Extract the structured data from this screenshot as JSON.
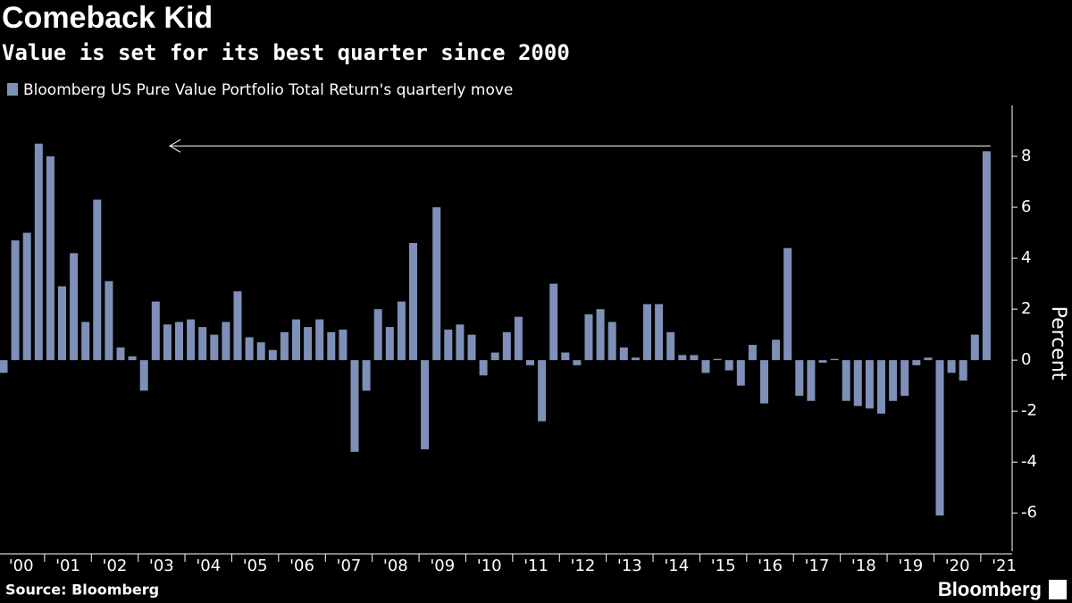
{
  "chart_data": {
    "type": "bar",
    "title": "Comeback Kid",
    "subtitle": "Value is set for its best quarter since 2000",
    "series": [
      {
        "name": "Bloomberg US Pure Value Portfolio Total Return's quarterly move",
        "color": "#7e90b8",
        "values": [
          -0.5,
          4.7,
          5.0,
          8.5,
          8.0,
          2.9,
          4.2,
          1.5,
          6.3,
          3.1,
          0.5,
          0.15,
          -1.2,
          2.3,
          1.4,
          1.5,
          1.6,
          1.3,
          1.0,
          1.5,
          2.7,
          0.9,
          0.7,
          0.4,
          1.1,
          1.6,
          1.3,
          1.6,
          1.1,
          1.2,
          -3.6,
          -1.2,
          2.0,
          1.3,
          2.3,
          4.6,
          -3.5,
          6.0,
          1.2,
          1.4,
          1.0,
          -0.6,
          0.3,
          1.1,
          1.7,
          -0.2,
          -2.4,
          3.0,
          0.3,
          -0.2,
          1.8,
          2.0,
          1.5,
          0.5,
          0.1,
          2.2,
          2.2,
          1.1,
          0.2,
          0.2,
          -0.5,
          0.05,
          -0.4,
          -1.0,
          0.6,
          -1.7,
          0.8,
          4.4,
          -1.4,
          -1.6,
          -0.1,
          0.05,
          -1.6,
          -1.8,
          -1.9,
          -2.1,
          -1.6,
          -1.4,
          -0.2,
          0.1,
          -6.1,
          -0.5,
          -0.8,
          1.0,
          8.2
        ]
      }
    ],
    "categories": [
      "'00",
      null,
      null,
      null,
      "'01",
      null,
      null,
      null,
      "'02",
      null,
      null,
      null,
      "'03",
      null,
      null,
      null,
      "'04",
      null,
      null,
      null,
      "'05",
      null,
      null,
      null,
      "'06",
      null,
      null,
      null,
      "'07",
      null,
      null,
      null,
      "'08",
      null,
      null,
      null,
      "'09",
      null,
      null,
      null,
      "'10",
      null,
      null,
      null,
      "'11",
      null,
      null,
      null,
      "'12",
      null,
      null,
      null,
      "'13",
      null,
      null,
      null,
      "'14",
      null,
      null,
      null,
      "'15",
      null,
      null,
      null,
      "'16",
      null,
      null,
      null,
      "'17",
      null,
      null,
      null,
      "'18",
      null,
      null,
      null,
      "'19",
      null,
      null,
      null,
      "'20",
      null,
      null,
      null,
      "'21"
    ],
    "y_label": "Percent",
    "ylim": [
      -7.5,
      10
    ],
    "yticks": [
      -6,
      -4,
      -2,
      0,
      2,
      4,
      6,
      8
    ],
    "source": "Source: Bloomberg",
    "logo": "Bloomberg"
  }
}
